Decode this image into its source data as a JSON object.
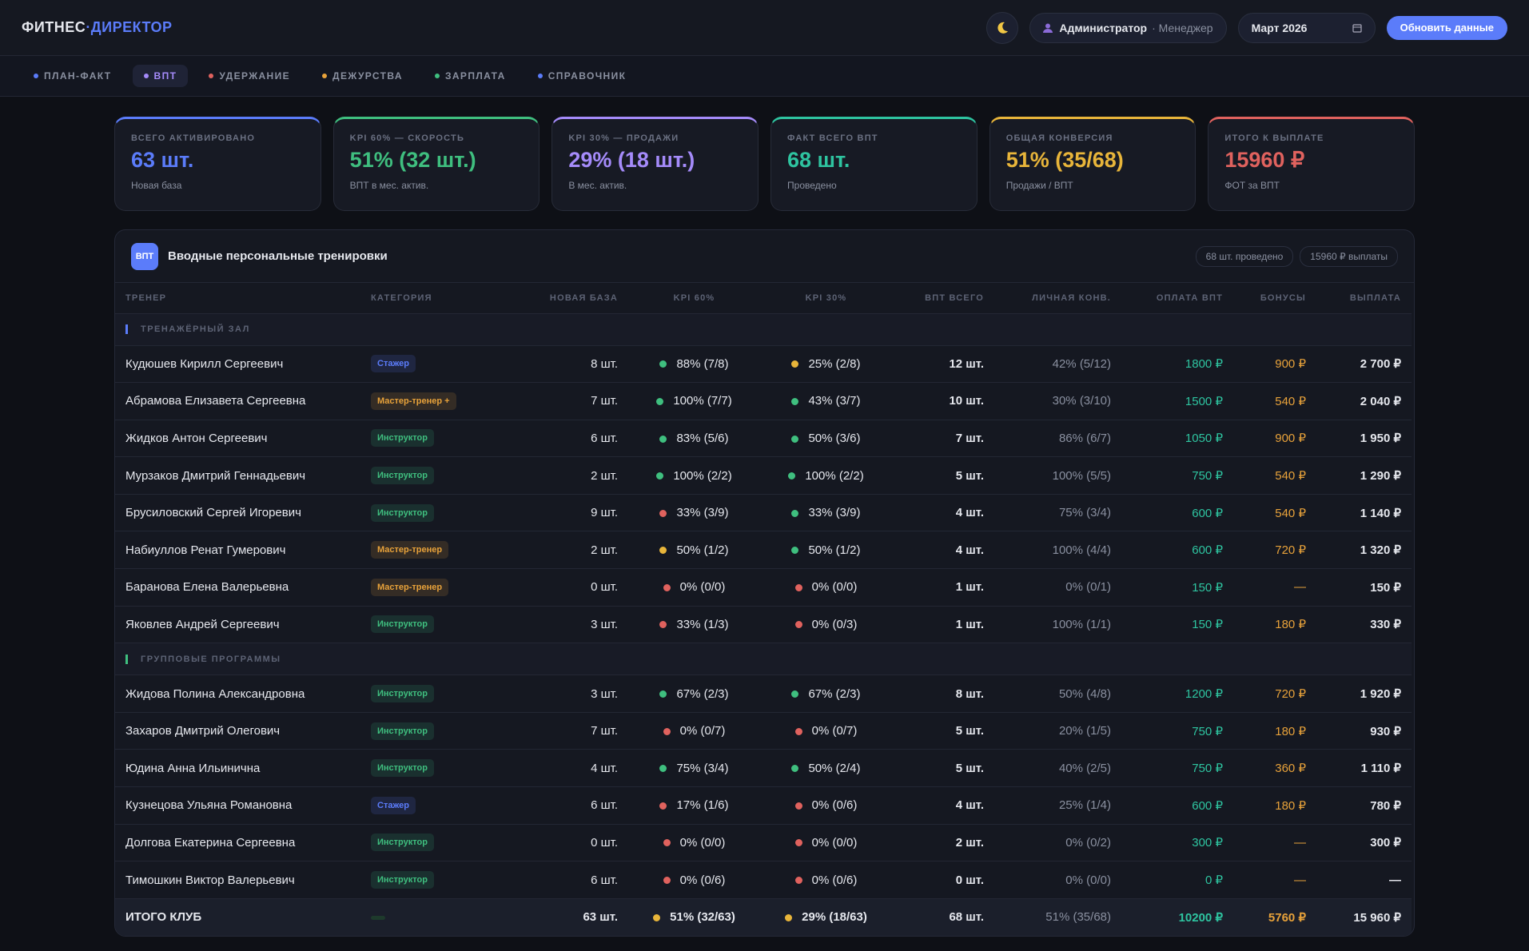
{
  "header": {
    "brand_main": "ФИТНЕС",
    "brand_accent": "·ДИРЕКТОР",
    "user": "Администратор",
    "role": "· Менеджер",
    "date": "Март 2026",
    "refresh": "Обновить данные"
  },
  "tabs": [
    {
      "label": "ПЛАН-ФАКТ",
      "color": "#5b7cfa"
    },
    {
      "label": "ВПТ",
      "color": "#a58bfa",
      "active": true
    },
    {
      "label": "УДЕРЖАНИЕ",
      "color": "#e0625e"
    },
    {
      "label": "ДЕЖУРСТВА",
      "color": "#e8a23a"
    },
    {
      "label": "ЗАРПЛАТА",
      "color": "#3fbf7f"
    },
    {
      "label": "СПРАВОЧНИК",
      "color": "#5b7cfa"
    }
  ],
  "cards": [
    {
      "label": "ВСЕГО АКТИВИРОВАНО",
      "value": "63 шт.",
      "note": "Новая база",
      "color": "#5b7cfa"
    },
    {
      "label": "KPI 60% — СКОРОСТЬ",
      "value": "51% (32 шт.)",
      "note": "ВПТ в мес. актив.",
      "color": "#3fbf7f"
    },
    {
      "label": "KPI 30% — ПРОДАЖИ",
      "value": "29% (18 шт.)",
      "note": "В мес. актив.",
      "color": "#a58bfa"
    },
    {
      "label": "ФАКТ ВСЕГО ВПТ",
      "value": "68 шт.",
      "note": "Проведено",
      "color": "#2ec4a0"
    },
    {
      "label": "ОБЩАЯ КОНВЕРСИЯ",
      "value": "51% (35/68)",
      "note": "Продажи / ВПТ",
      "color": "#e8b53a"
    },
    {
      "label": "ИТОГО К ВЫПЛАТЕ",
      "value": "15960 ₽",
      "note": "ФОТ за ВПТ",
      "color": "#e0625e"
    }
  ],
  "panel": {
    "badge": "ВПТ",
    "title": "Вводные персональные тренировки",
    "chips": [
      "68 шт. проведено",
      "15960 ₽ выплаты"
    ]
  },
  "table": {
    "columns": [
      "ТРЕНЕР",
      "КАТЕГОРИЯ",
      "НОВАЯ БАЗА",
      "KPI 60%",
      "KPI 30%",
      "ВПТ ВСЕГО",
      "ЛИЧНАЯ КОНВ.",
      "ОПЛАТА ВПТ",
      "БОНУСЫ",
      "ВЫПЛАТА"
    ],
    "groups": [
      {
        "name": "ТРЕНАЖЁРНЫЙ ЗАЛ",
        "color": "#5b7cfa",
        "rows": [
          {
            "cells": [
              "Кудюшев Кирилл Сергеевич",
              "Стажер",
              "8 шт.",
              "88% (7/8)",
              "25% (2/8)",
              "12 шт.",
              "42% (5/12)",
              "1800 ₽",
              "900 ₽",
              "2 700 ₽"
            ],
            "colors": {
              "category": "#5b7cfa",
              "kpi60": "#3fbf7f",
              "kpi30": "#e8b53a"
            }
          },
          {
            "cells": [
              "Абрамова Елизавета Сергеевна",
              "Мастер-тренер +",
              "7 шт.",
              "100% (7/7)",
              "43% (3/7)",
              "10 шт.",
              "30% (3/10)",
              "1500 ₽",
              "540 ₽",
              "2 040 ₽"
            ],
            "colors": {
              "category": "#e8a23a",
              "kpi60": "#3fbf7f",
              "kpi30": "#3fbf7f"
            }
          },
          {
            "cells": [
              "Жидков Антон Сергеевич",
              "Инструктор",
              "6 шт.",
              "83% (5/6)",
              "50% (3/6)",
              "7 шт.",
              "86% (6/7)",
              "1050 ₽",
              "900 ₽",
              "1 950 ₽"
            ],
            "colors": {
              "category": "#3fbf7f",
              "kpi60": "#3fbf7f",
              "kpi30": "#3fbf7f"
            }
          },
          {
            "cells": [
              "Мурзаков Дмитрий Геннадьевич",
              "Инструктор",
              "2 шт.",
              "100% (2/2)",
              "100% (2/2)",
              "5 шт.",
              "100% (5/5)",
              "750 ₽",
              "540 ₽",
              "1 290 ₽"
            ],
            "colors": {
              "category": "#3fbf7f",
              "kpi60": "#3fbf7f",
              "kpi30": "#3fbf7f"
            }
          },
          {
            "cells": [
              "Брусиловский Сергей Игоревич",
              "Инструктор",
              "9 шт.",
              "33% (3/9)",
              "33% (3/9)",
              "4 шт.",
              "75% (3/4)",
              "600 ₽",
              "540 ₽",
              "1 140 ₽"
            ],
            "colors": {
              "category": "#3fbf7f",
              "kpi60": "#e0625e",
              "kpi30": "#3fbf7f"
            }
          },
          {
            "cells": [
              "Набиуллов Ренат Гумерович",
              "Мастер-тренер",
              "2 шт.",
              "50% (1/2)",
              "50% (1/2)",
              "4 шт.",
              "100% (4/4)",
              "600 ₽",
              "720 ₽",
              "1 320 ₽"
            ],
            "colors": {
              "category": "#e8a23a",
              "kpi60": "#e8b53a",
              "kpi30": "#3fbf7f"
            }
          },
          {
            "cells": [
              "Баранова Елена Валерьевна",
              "Мастер-тренер",
              "0 шт.",
              "0% (0/0)",
              "0% (0/0)",
              "1 шт.",
              "0% (0/1)",
              "150 ₽",
              "—",
              "150 ₽"
            ],
            "colors": {
              "category": "#e8a23a",
              "kpi60": "#e0625e",
              "kpi30": "#e0625e"
            }
          },
          {
            "cells": [
              "Яковлев Андрей Сергеевич",
              "Инструктор",
              "3 шт.",
              "33% (1/3)",
              "0% (0/3)",
              "1 шт.",
              "100% (1/1)",
              "150 ₽",
              "180 ₽",
              "330 ₽"
            ],
            "colors": {
              "category": "#3fbf7f",
              "kpi60": "#e0625e",
              "kpi30": "#e0625e"
            }
          }
        ]
      },
      {
        "name": "ГРУППОВЫЕ ПРОГРАММЫ",
        "color": "#3fbf7f",
        "rows": [
          {
            "cells": [
              "Жидова Полина Александровна",
              "Инструктор",
              "3 шт.",
              "67% (2/3)",
              "67% (2/3)",
              "8 шт.",
              "50% (4/8)",
              "1200 ₽",
              "720 ₽",
              "1 920 ₽"
            ],
            "colors": {
              "category": "#3fbf7f",
              "kpi60": "#3fbf7f",
              "kpi30": "#3fbf7f"
            }
          },
          {
            "cells": [
              "Захаров Дмитрий Олегович",
              "Инструктор",
              "7 шт.",
              "0% (0/7)",
              "0% (0/7)",
              "5 шт.",
              "20% (1/5)",
              "750 ₽",
              "180 ₽",
              "930 ₽"
            ],
            "colors": {
              "category": "#3fbf7f",
              "kpi60": "#e0625e",
              "kpi30": "#e0625e"
            }
          },
          {
            "cells": [
              "Юдина Анна Ильинична",
              "Инструктор",
              "4 шт.",
              "75% (3/4)",
              "50% (2/4)",
              "5 шт.",
              "40% (2/5)",
              "750 ₽",
              "360 ₽",
              "1 110 ₽"
            ],
            "colors": {
              "category": "#3fbf7f",
              "kpi60": "#3fbf7f",
              "kpi30": "#3fbf7f"
            }
          },
          {
            "cells": [
              "Кузнецова Ульяна Романовна",
              "Стажер",
              "6 шт.",
              "17% (1/6)",
              "0% (0/6)",
              "4 шт.",
              "25% (1/4)",
              "600 ₽",
              "180 ₽",
              "780 ₽"
            ],
            "colors": {
              "category": "#5b7cfa",
              "kpi60": "#e0625e",
              "kpi30": "#e0625e"
            }
          },
          {
            "cells": [
              "Долгова Екатерина Сергеевна",
              "Инструктор",
              "0 шт.",
              "0% (0/0)",
              "0% (0/0)",
              "2 шт.",
              "0% (0/2)",
              "300 ₽",
              "—",
              "300 ₽"
            ],
            "colors": {
              "category": "#3fbf7f",
              "kpi60": "#e0625e",
              "kpi30": "#e0625e"
            }
          },
          {
            "cells": [
              "Тимошкин Виктор Валерьевич",
              "Инструктор",
              "6 шт.",
              "0% (0/6)",
              "0% (0/6)",
              "0 шт.",
              "0% (0/0)",
              "0 ₽",
              "—",
              "—"
            ],
            "colors": {
              "category": "#3fbf7f",
              "kpi60": "#e0625e",
              "kpi30": "#e0625e"
            }
          }
        ]
      }
    ],
    "total": {
      "cells": [
        "ИТОГО КЛУБ",
        "",
        "63 шт.",
        "51% (32/63)",
        "29% (18/63)",
        "68 шт.",
        "51% (35/68)",
        "10200 ₽",
        "5760 ₽",
        "15 960 ₽"
      ],
      "colors": {
        "category": "#3fbf7f",
        "kpi60": "#e8b53a",
        "kpi30": "#e8b53a"
      }
    }
  }
}
